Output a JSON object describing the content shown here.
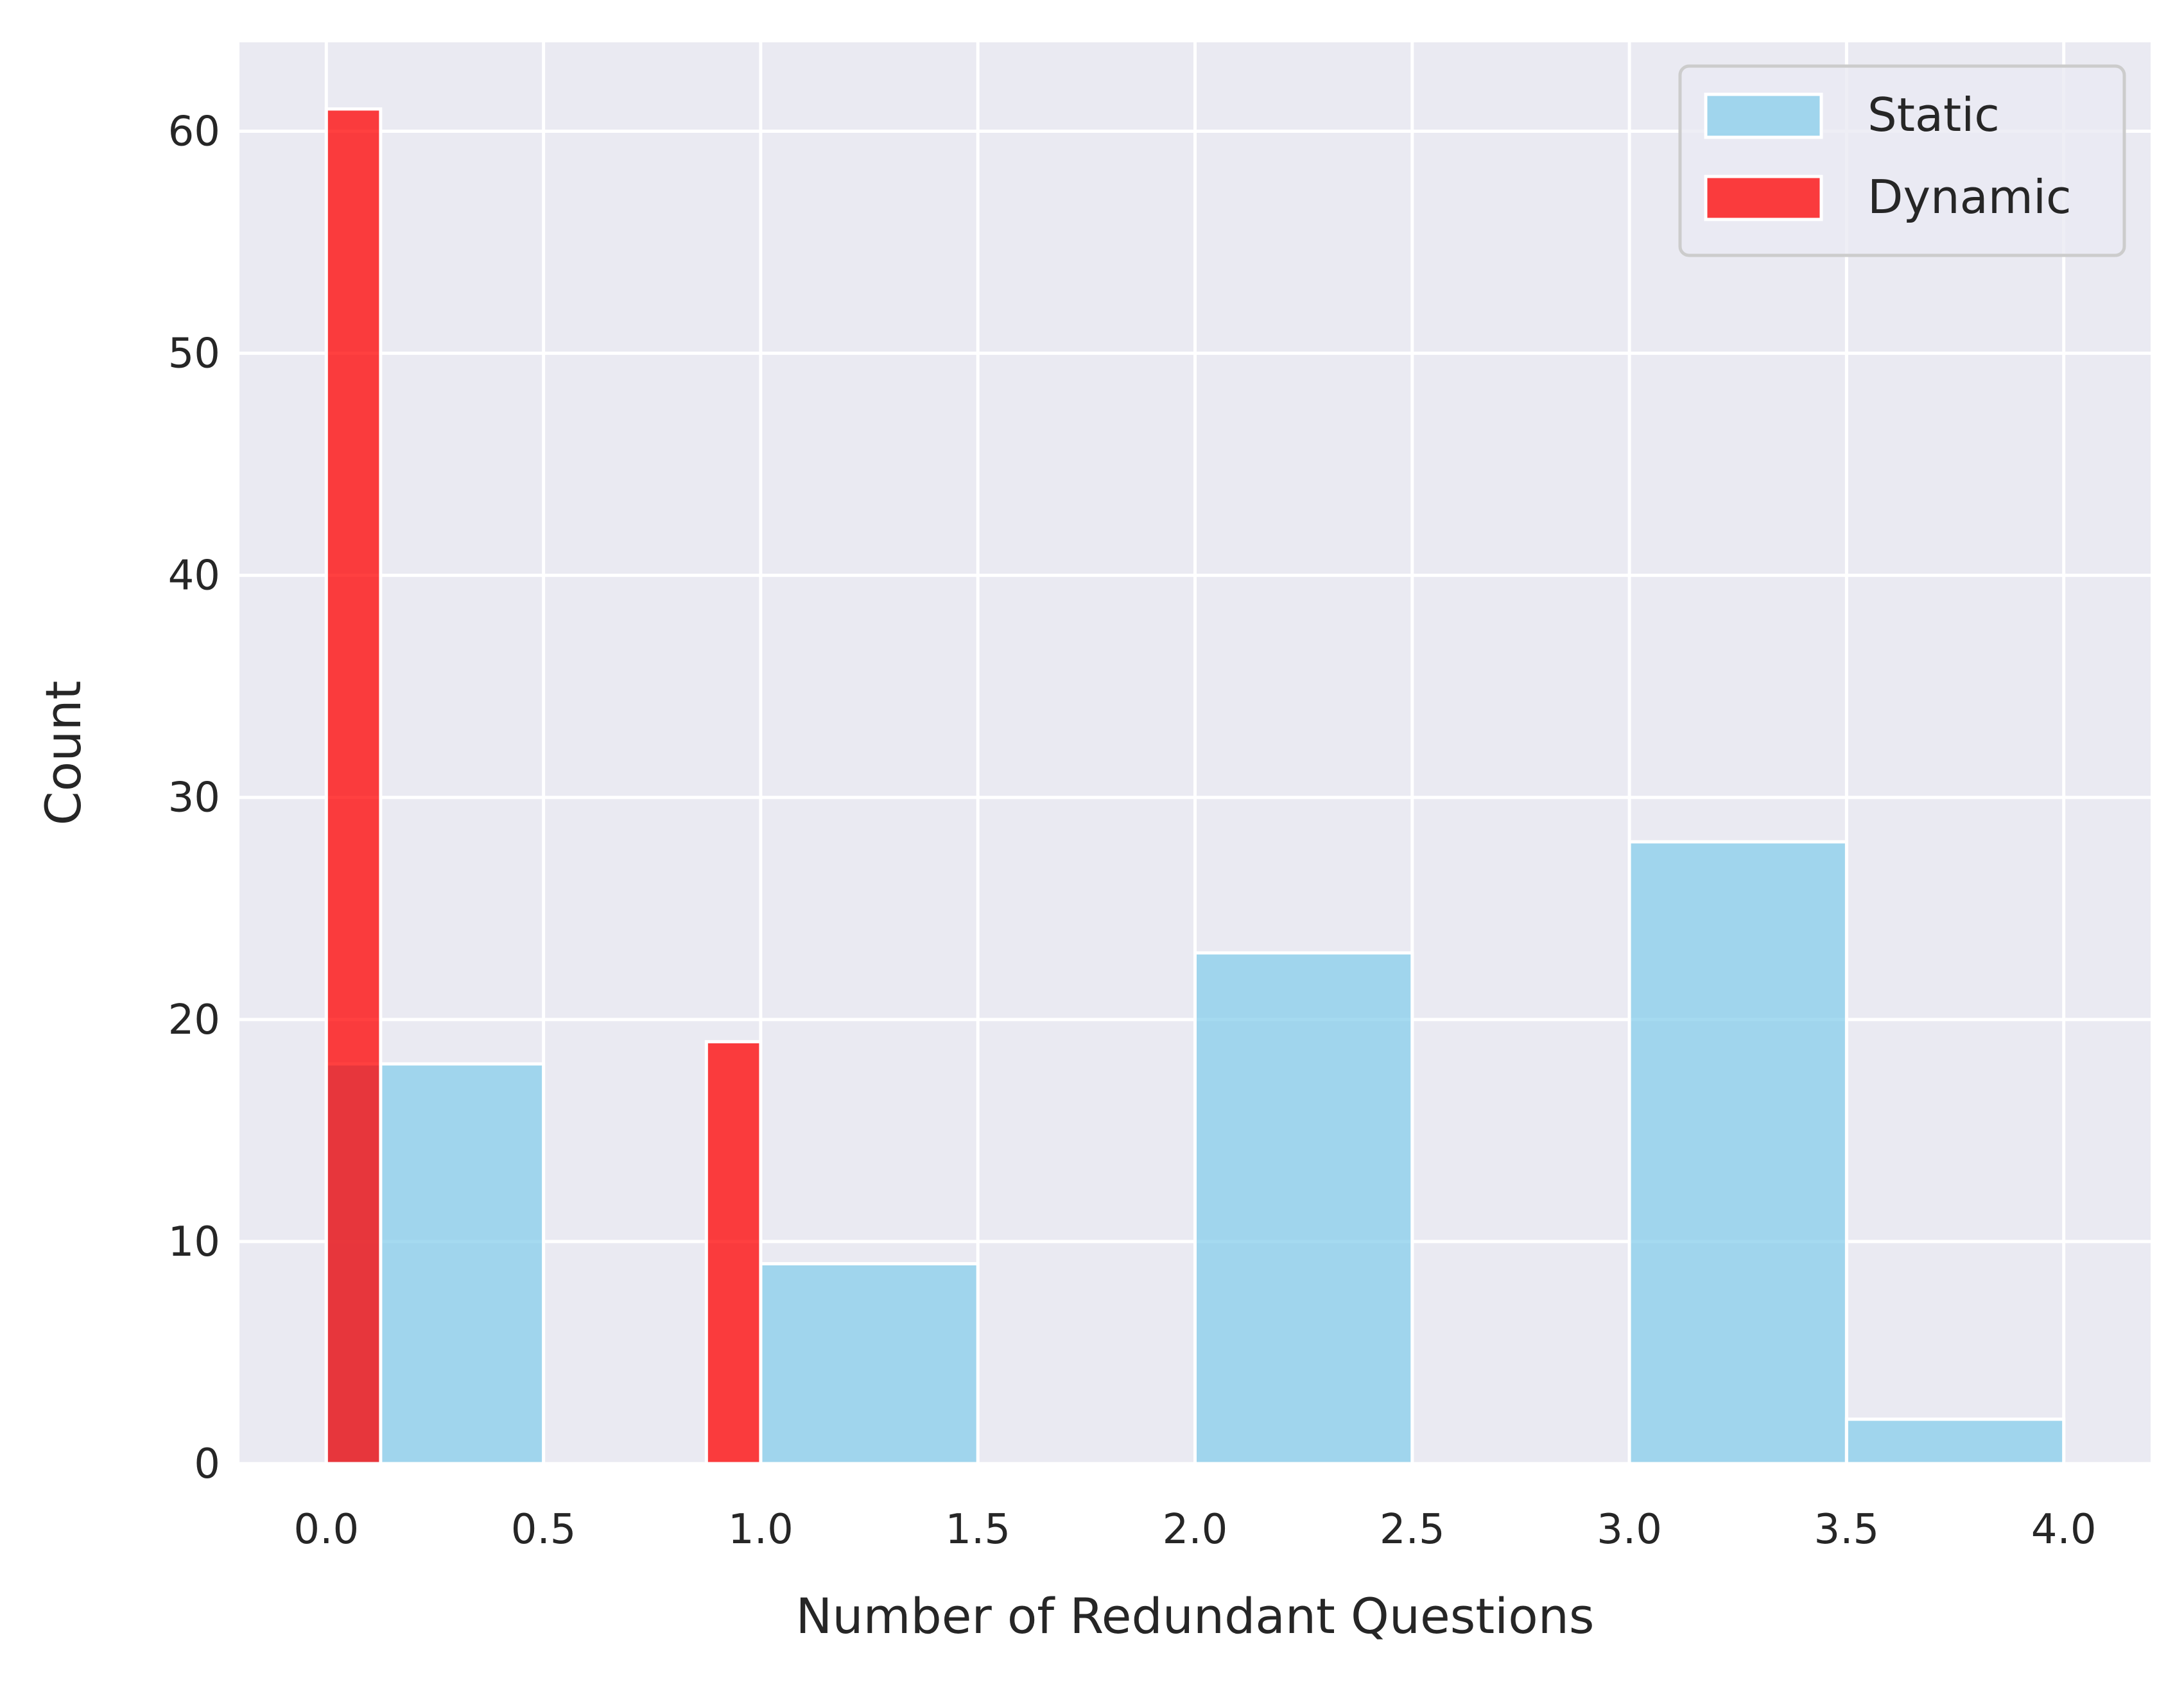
{
  "chart_data": {
    "type": "bar",
    "subtype": "histogram",
    "title": "",
    "xlabel": "Number of Redundant Questions",
    "ylabel": "Count",
    "xlim": [
      -0.2,
      4.2
    ],
    "ylim": [
      0,
      64
    ],
    "x_ticks": [
      "0.0",
      "0.5",
      "1.0",
      "1.5",
      "2.0",
      "2.5",
      "3.0",
      "3.5",
      "4.0"
    ],
    "y_ticks": [
      "0",
      "10",
      "20",
      "30",
      "40",
      "50",
      "60"
    ],
    "grid": true,
    "legend_position": "top-right",
    "series": [
      {
        "name": "Static",
        "color": "#87ceeb",
        "opacity": 0.75,
        "bins": [
          {
            "x0": 0.0,
            "x1": 0.5,
            "count": 18
          },
          {
            "x0": 0.5,
            "x1": 1.0,
            "count": 0
          },
          {
            "x0": 1.0,
            "x1": 1.5,
            "count": 9
          },
          {
            "x0": 1.5,
            "x1": 2.0,
            "count": 0
          },
          {
            "x0": 2.0,
            "x1": 2.5,
            "count": 23
          },
          {
            "x0": 2.5,
            "x1": 3.0,
            "count": 0
          },
          {
            "x0": 3.0,
            "x1": 3.5,
            "count": 28
          },
          {
            "x0": 3.5,
            "x1": 4.0,
            "count": 2
          }
        ]
      },
      {
        "name": "Dynamic",
        "color": "#ff0000",
        "opacity": 0.75,
        "bins": [
          {
            "x0": 0.0,
            "x1": 0.125,
            "count": 61
          },
          {
            "x0": 0.875,
            "x1": 1.0,
            "count": 19
          }
        ]
      }
    ]
  },
  "colors": {
    "axes_background": "#eaeaf2",
    "grid": "#ffffff",
    "text": "#262626"
  }
}
